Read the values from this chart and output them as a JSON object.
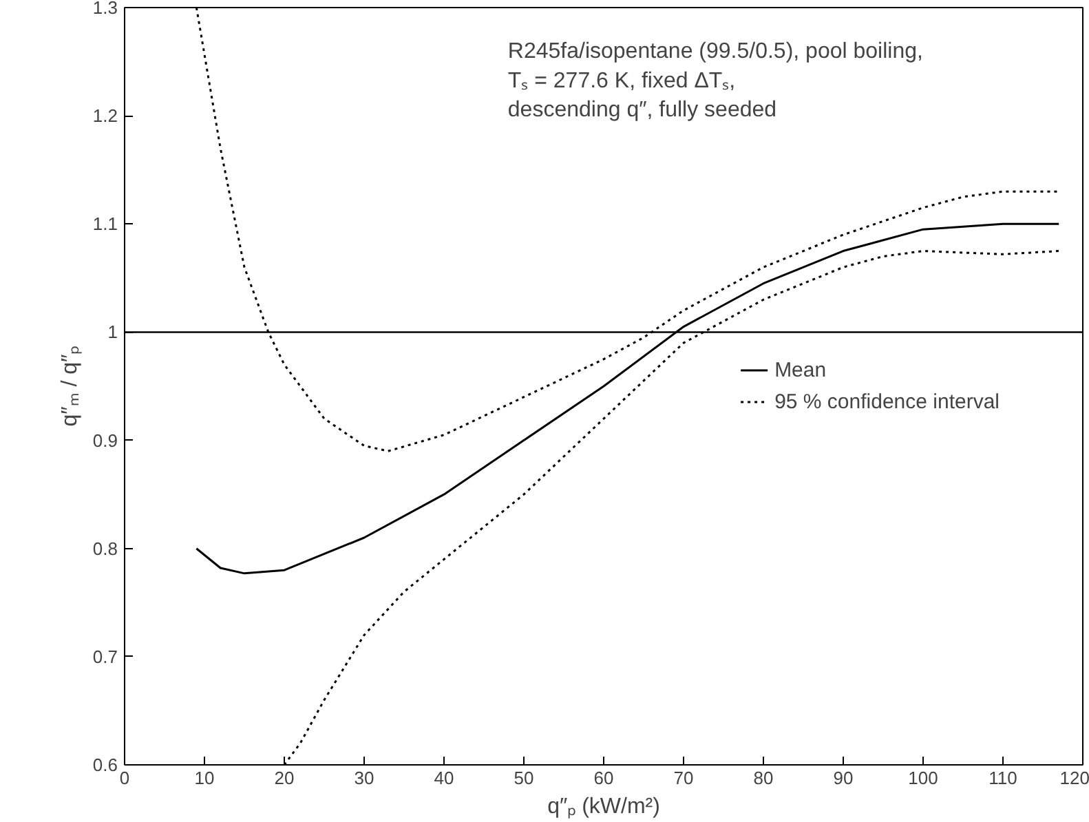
{
  "chart_data": {
    "type": "line",
    "xlabel": "q″ₚ (kW/m²)",
    "ylabel": "q″ₘ / q″ₚ",
    "annotations": [
      "R245fa/isopentane (99.5/0.5), pool boiling,\nTₛ = 277.6 K, fixed ΔTₛ,\ndescending q″, fully seeded"
    ],
    "xlim": [
      0,
      120
    ],
    "xticks": [
      0,
      10,
      20,
      30,
      40,
      50,
      60,
      70,
      80,
      90,
      100,
      110,
      120
    ],
    "ylim": [
      0.6,
      1.3
    ],
    "yticks": [
      0.6,
      0.7,
      0.8,
      0.9,
      1,
      1.1,
      1.2,
      1.3
    ],
    "grid": false,
    "legend": "right",
    "marker": "none",
    "ref_lines": [
      {
        "axis": "y",
        "value": 1,
        "color": "#000000"
      }
    ],
    "series": [
      {
        "name": "Mean",
        "color": "#000000",
        "line_style": "solid",
        "x": [
          9,
          12,
          15,
          20,
          30,
          40,
          50,
          60,
          70,
          80,
          90,
          100,
          110,
          117
        ],
        "values": [
          0.8,
          0.782,
          0.777,
          0.78,
          0.81,
          0.85,
          0.9,
          0.95,
          1.005,
          1.045,
          1.075,
          1.095,
          1.1,
          1.1
        ]
      },
      {
        "name": "95 % confidence interval",
        "color": "#000000",
        "line_style": "dotted",
        "x": [
          9,
          12,
          15,
          18,
          20,
          25,
          30,
          33,
          40,
          50,
          60,
          65,
          70,
          80,
          90,
          100,
          105,
          110,
          117
        ],
        "values": [
          1.3,
          1.17,
          1.06,
          1.0,
          0.97,
          0.92,
          0.895,
          0.89,
          0.905,
          0.94,
          0.975,
          0.995,
          1.02,
          1.06,
          1.09,
          1.115,
          1.125,
          1.13,
          1.13
        ]
      },
      {
        "color": "#000000",
        "line_style": "dotted",
        "x": [
          20,
          22,
          25,
          30,
          35,
          40,
          50,
          60,
          70,
          80,
          90,
          95,
          100,
          110,
          117
        ],
        "values": [
          0.6,
          0.62,
          0.66,
          0.72,
          0.76,
          0.79,
          0.85,
          0.92,
          0.99,
          1.03,
          1.06,
          1.07,
          1.075,
          1.072,
          1.075
        ]
      }
    ]
  }
}
